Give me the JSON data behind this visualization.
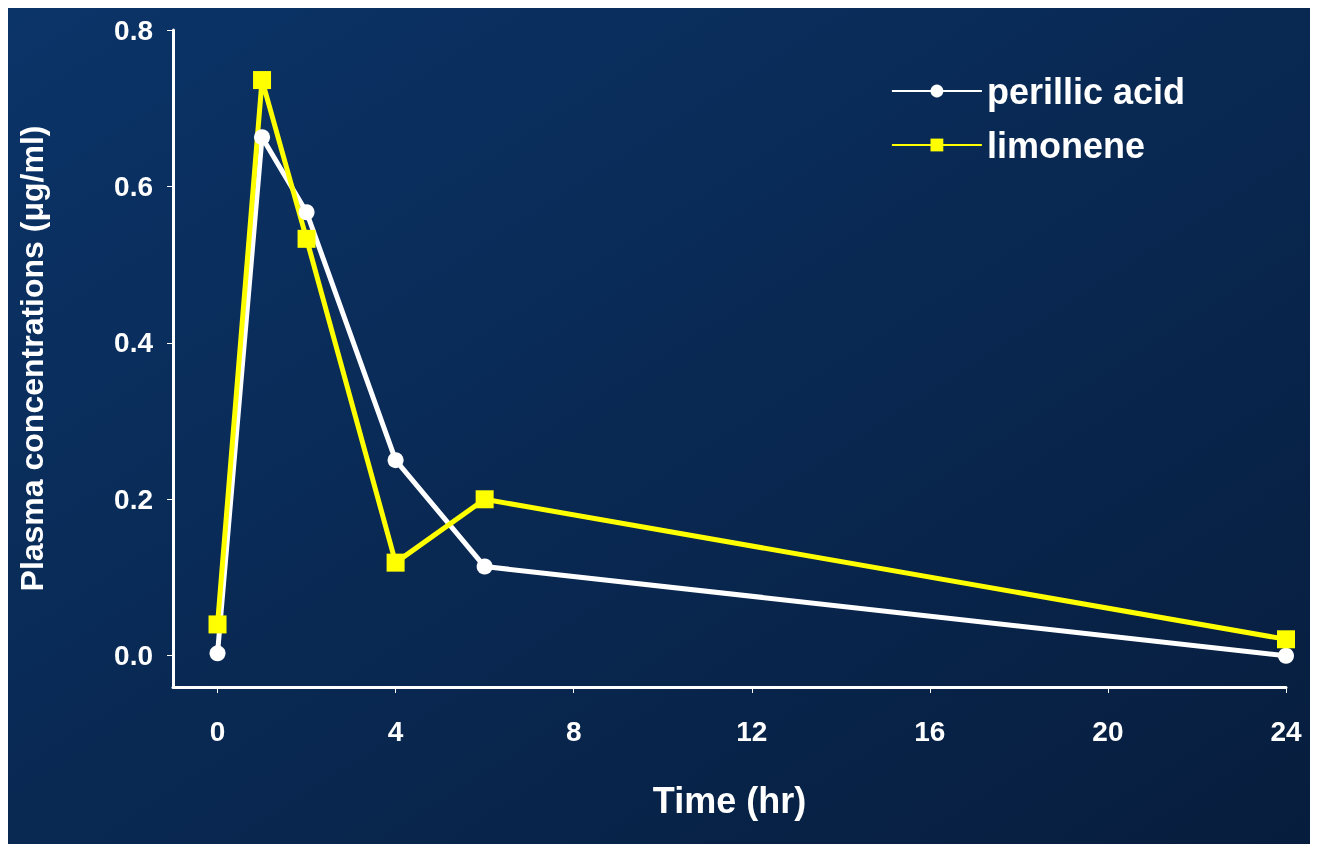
{
  "chart_data": {
    "type": "line",
    "xlabel": "Time (hr)",
    "ylabel": "Plasma concentrations (μg/ml)",
    "xlim": [
      -1,
      24
    ],
    "xticks": [
      0,
      4,
      8,
      12,
      16,
      20,
      24
    ],
    "ylim": [
      -0.04,
      0.8
    ],
    "yticks": [
      {
        "value": 0,
        "label": "0.0"
      },
      {
        "value": 0.2,
        "label": "0.2"
      },
      {
        "value": 0.4,
        "label": "0.4"
      },
      {
        "value": 0.6,
        "label": "0.6"
      },
      {
        "value": 0.8,
        "label": "0.8"
      }
    ],
    "x": [
      0,
      1,
      2,
      4,
      6,
      24
    ],
    "series": [
      {
        "name": "perillic acid",
        "color": "#ffffff",
        "marker": "circle",
        "values": [
          0.003,
          0.663,
          0.567,
          0.25,
          0.114,
          0
        ]
      },
      {
        "name": "limonene",
        "color": "#ffff00",
        "marker": "square",
        "values": [
          0.04,
          0.736,
          0.533,
          0.119,
          0.2,
          0.021
        ]
      }
    ],
    "legend": "top right",
    "grid": false,
    "line_style": "solid"
  }
}
